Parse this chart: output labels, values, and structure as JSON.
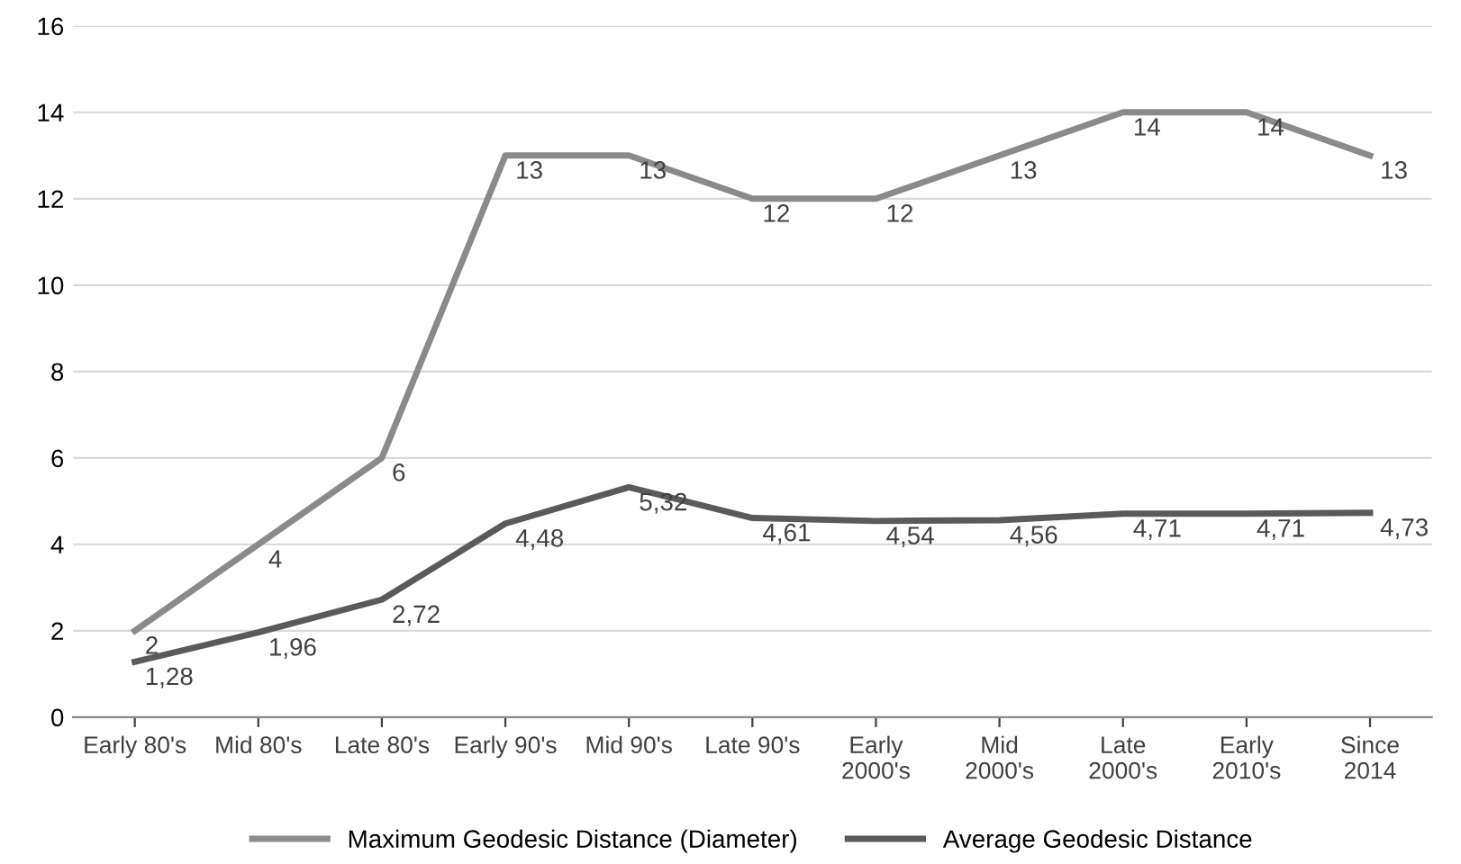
{
  "chart_data": {
    "type": "line",
    "categories": [
      "Early 80's",
      "Mid 80's",
      "Late 80's",
      "Early 90's",
      "Mid 90's",
      "Late 90's",
      "Early\n2000's",
      "Mid\n2000's",
      "Late\n2000's",
      "Early\n2010's",
      "Since\n2014"
    ],
    "series": [
      {
        "name": "Maximum Geodesic Distance (Diameter)",
        "color": "#8a8a8a",
        "values": [
          2,
          4,
          6,
          13,
          13,
          12,
          12,
          13,
          14,
          14,
          13
        ],
        "value_labels": [
          "2",
          "4",
          "6",
          "13",
          "13",
          "12",
          "12",
          "13",
          "14",
          "14",
          "13"
        ]
      },
      {
        "name": "Average Geodesic Distance",
        "color": "#5a5a5a",
        "values": [
          1.28,
          1.96,
          2.72,
          4.48,
          5.32,
          4.61,
          4.54,
          4.56,
          4.71,
          4.71,
          4.73
        ],
        "value_labels": [
          "1,28",
          "1,96",
          "2,72",
          "4,48",
          "5,32",
          "4,61",
          "4,54",
          "4,56",
          "4,71",
          "4,71",
          "4,73"
        ]
      }
    ],
    "ylim": [
      0,
      16
    ],
    "yticks": [
      0,
      2,
      4,
      6,
      8,
      10,
      12,
      14,
      16
    ],
    "grid": "y",
    "legend": "bottom",
    "marker": "none",
    "line_style": "solid"
  }
}
